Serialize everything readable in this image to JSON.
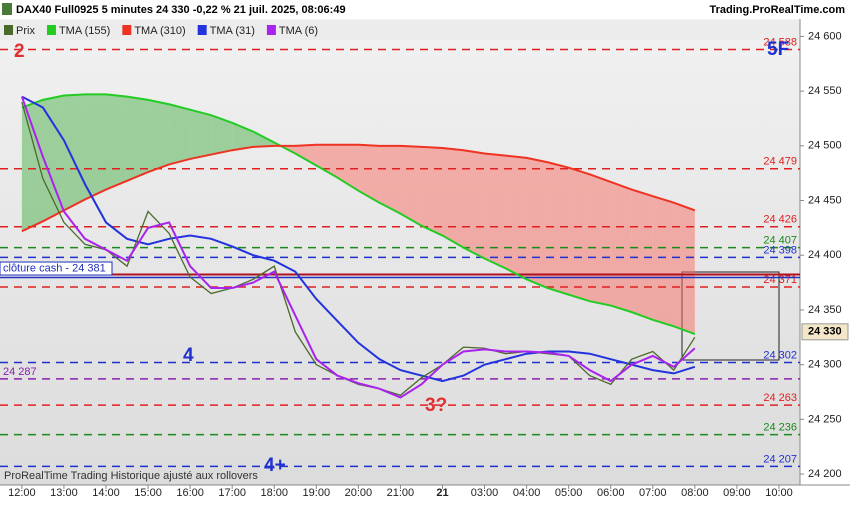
{
  "chart_data": {
    "type": "line",
    "title": "DAX40 Full0925 5 minutes 24 330 -0,22 % 21 juil. 2025, 08:06:49",
    "source": "Trading.ProRealTime.com",
    "footer": "ProRealTime Trading  Historique ajusté aux rollovers",
    "x": [
      0,
      0.5,
      1,
      1.5,
      2,
      2.5,
      3,
      3.5,
      4,
      4.5,
      5,
      5.5,
      6,
      6.5,
      7,
      7.5,
      8,
      8.5,
      9,
      9.5,
      10,
      10.5,
      11,
      11.5,
      12,
      12.5,
      13,
      13.5,
      14,
      14.5,
      15,
      15.5,
      16
    ],
    "xlim": [
      -0.52,
      18.5
    ],
    "xticks": [
      {
        "value": 0,
        "label": "12:00"
      },
      {
        "value": 1,
        "label": "13:00"
      },
      {
        "value": 2,
        "label": "14:00"
      },
      {
        "value": 3,
        "label": "15:00"
      },
      {
        "value": 4,
        "label": "16:00"
      },
      {
        "value": 5,
        "label": "17:00"
      },
      {
        "value": 6,
        "label": "18:00"
      },
      {
        "value": 7,
        "label": "19:00"
      },
      {
        "value": 8,
        "label": "20:00"
      },
      {
        "value": 9,
        "label": "21:00"
      },
      {
        "value": 10,
        "label": "21"
      },
      {
        "value": 11,
        "label": "03:00"
      },
      {
        "value": 12,
        "label": "04:00"
      },
      {
        "value": 13,
        "label": "05:00"
      },
      {
        "value": 14,
        "label": "06:00"
      },
      {
        "value": 15,
        "label": "07:00"
      },
      {
        "value": 16,
        "label": "08:00"
      },
      {
        "value": 17,
        "label": "09:00"
      },
      {
        "value": 18,
        "label": "10:00"
      }
    ],
    "ylim": [
      24190,
      24615
    ],
    "yticks": [
      {
        "value": 24200,
        "label": "24 200"
      },
      {
        "value": 24250,
        "label": "24 250"
      },
      {
        "value": 24300,
        "label": "24 300"
      },
      {
        "value": 24350,
        "label": "24 350"
      },
      {
        "value": 24400,
        "label": "24 400"
      },
      {
        "value": 24450,
        "label": "24 450"
      },
      {
        "value": 24500,
        "label": "24 500"
      },
      {
        "value": 24550,
        "label": "24 550"
      },
      {
        "value": 24600,
        "label": "24 600"
      }
    ],
    "series": [
      {
        "name": "Prix",
        "color": "#4a6a2a",
        "values": [
          24540,
          24470,
          24430,
          24410,
          24405,
          24390,
          24440,
          24420,
          24380,
          24365,
          24370,
          24378,
          24390,
          24330,
          24300,
          24290,
          24282,
          24278,
          24272,
          24288,
          24300,
          24316,
          24315,
          24310,
          24312,
          24310,
          24308,
          24290,
          24282,
          24305,
          24312,
          24295,
          24325
        ]
      },
      {
        "name": "TMA (155)",
        "color": "#22cc22",
        "values": [
          24535,
          24542,
          24546,
          24547,
          24547,
          24545,
          24542,
          24538,
          24533,
          24528,
          24521,
          24513,
          24503,
          24493,
          24482,
          24471,
          24459,
          24448,
          24438,
          24427,
          24418,
          24407,
          24397,
          24388,
          24378,
          24370,
          24364,
          24358,
          24354,
          24348,
          24341,
          24335,
          24328
        ]
      },
      {
        "name": "TMA (310)",
        "color": "#ee3322",
        "values": [
          24422,
          24431,
          24441,
          24451,
          24460,
          24468,
          24476,
          24483,
          24488,
          24492,
          24496,
          24499,
          24500,
          24500,
          24501,
          24501,
          24501,
          24500,
          24500,
          24499,
          24498,
          24496,
          24493,
          24491,
          24489,
          24485,
          24480,
          24474,
          24467,
          24460,
          24454,
          24448,
          24441
        ]
      },
      {
        "name": "TMA (31)",
        "color": "#2233dd",
        "values": [
          24545,
          24535,
          24505,
          24465,
          24430,
          24415,
          24410,
          24415,
          24418,
          24415,
          24408,
          24400,
          24395,
          24385,
          24360,
          24340,
          24320,
          24305,
          24295,
          24290,
          24285,
          24290,
          24300,
          24305,
          24310,
          24312,
          24312,
          24310,
          24305,
          24300,
          24295,
          24292,
          24298
        ]
      },
      {
        "name": "TMA (6)",
        "color": "#aa22ee",
        "values": [
          24545,
          24490,
          24440,
          24415,
          24405,
          24395,
          24425,
          24430,
          24390,
          24370,
          24370,
          24375,
          24385,
          24345,
          24305,
          24290,
          24283,
          24278,
          24270,
          24282,
          24300,
          24312,
          24314,
          24312,
          24312,
          24311,
          24308,
          24295,
          24285,
          24300,
          24308,
          24298,
          24315
        ]
      }
    ],
    "levels": [
      {
        "value": 24588,
        "label": "24 588",
        "color": "#e02020"
      },
      {
        "value": 24479,
        "label": "24 479",
        "color": "#e02020"
      },
      {
        "value": 24426,
        "label": "24 426",
        "color": "#e02020"
      },
      {
        "value": 24407,
        "label": "24 407",
        "color": "#1a8a1a"
      },
      {
        "value": 24398,
        "label": "24 398",
        "color": "#2030d0"
      },
      {
        "value": 24371,
        "label": "24 371",
        "color": "#e02020"
      },
      {
        "value": 24302,
        "label": "24 302",
        "color": "#2030d0"
      },
      {
        "value": 24287,
        "label": "24 287",
        "color": "#8a20b0",
        "label_side": "left"
      },
      {
        "value": 24263,
        "label": "24 263",
        "color": "#e02020"
      },
      {
        "value": 24236,
        "label": "24 236",
        "color": "#1a8a1a"
      },
      {
        "value": 24207,
        "label": "24 207",
        "color": "#2030d0"
      }
    ],
    "close_line": {
      "value": 24381,
      "label": "clôture cash - 24 381"
    },
    "last_price": {
      "value": 24330,
      "label": "24 330"
    },
    "annotations": [
      {
        "text": "2",
        "color": "#e03030"
      },
      {
        "text": "5F",
        "color": "#2030d0"
      },
      {
        "text": "4",
        "color": "#2030d0"
      },
      {
        "text": "3?",
        "color": "#e03030"
      },
      {
        "text": "4+",
        "color": "#2030d0"
      }
    ]
  }
}
